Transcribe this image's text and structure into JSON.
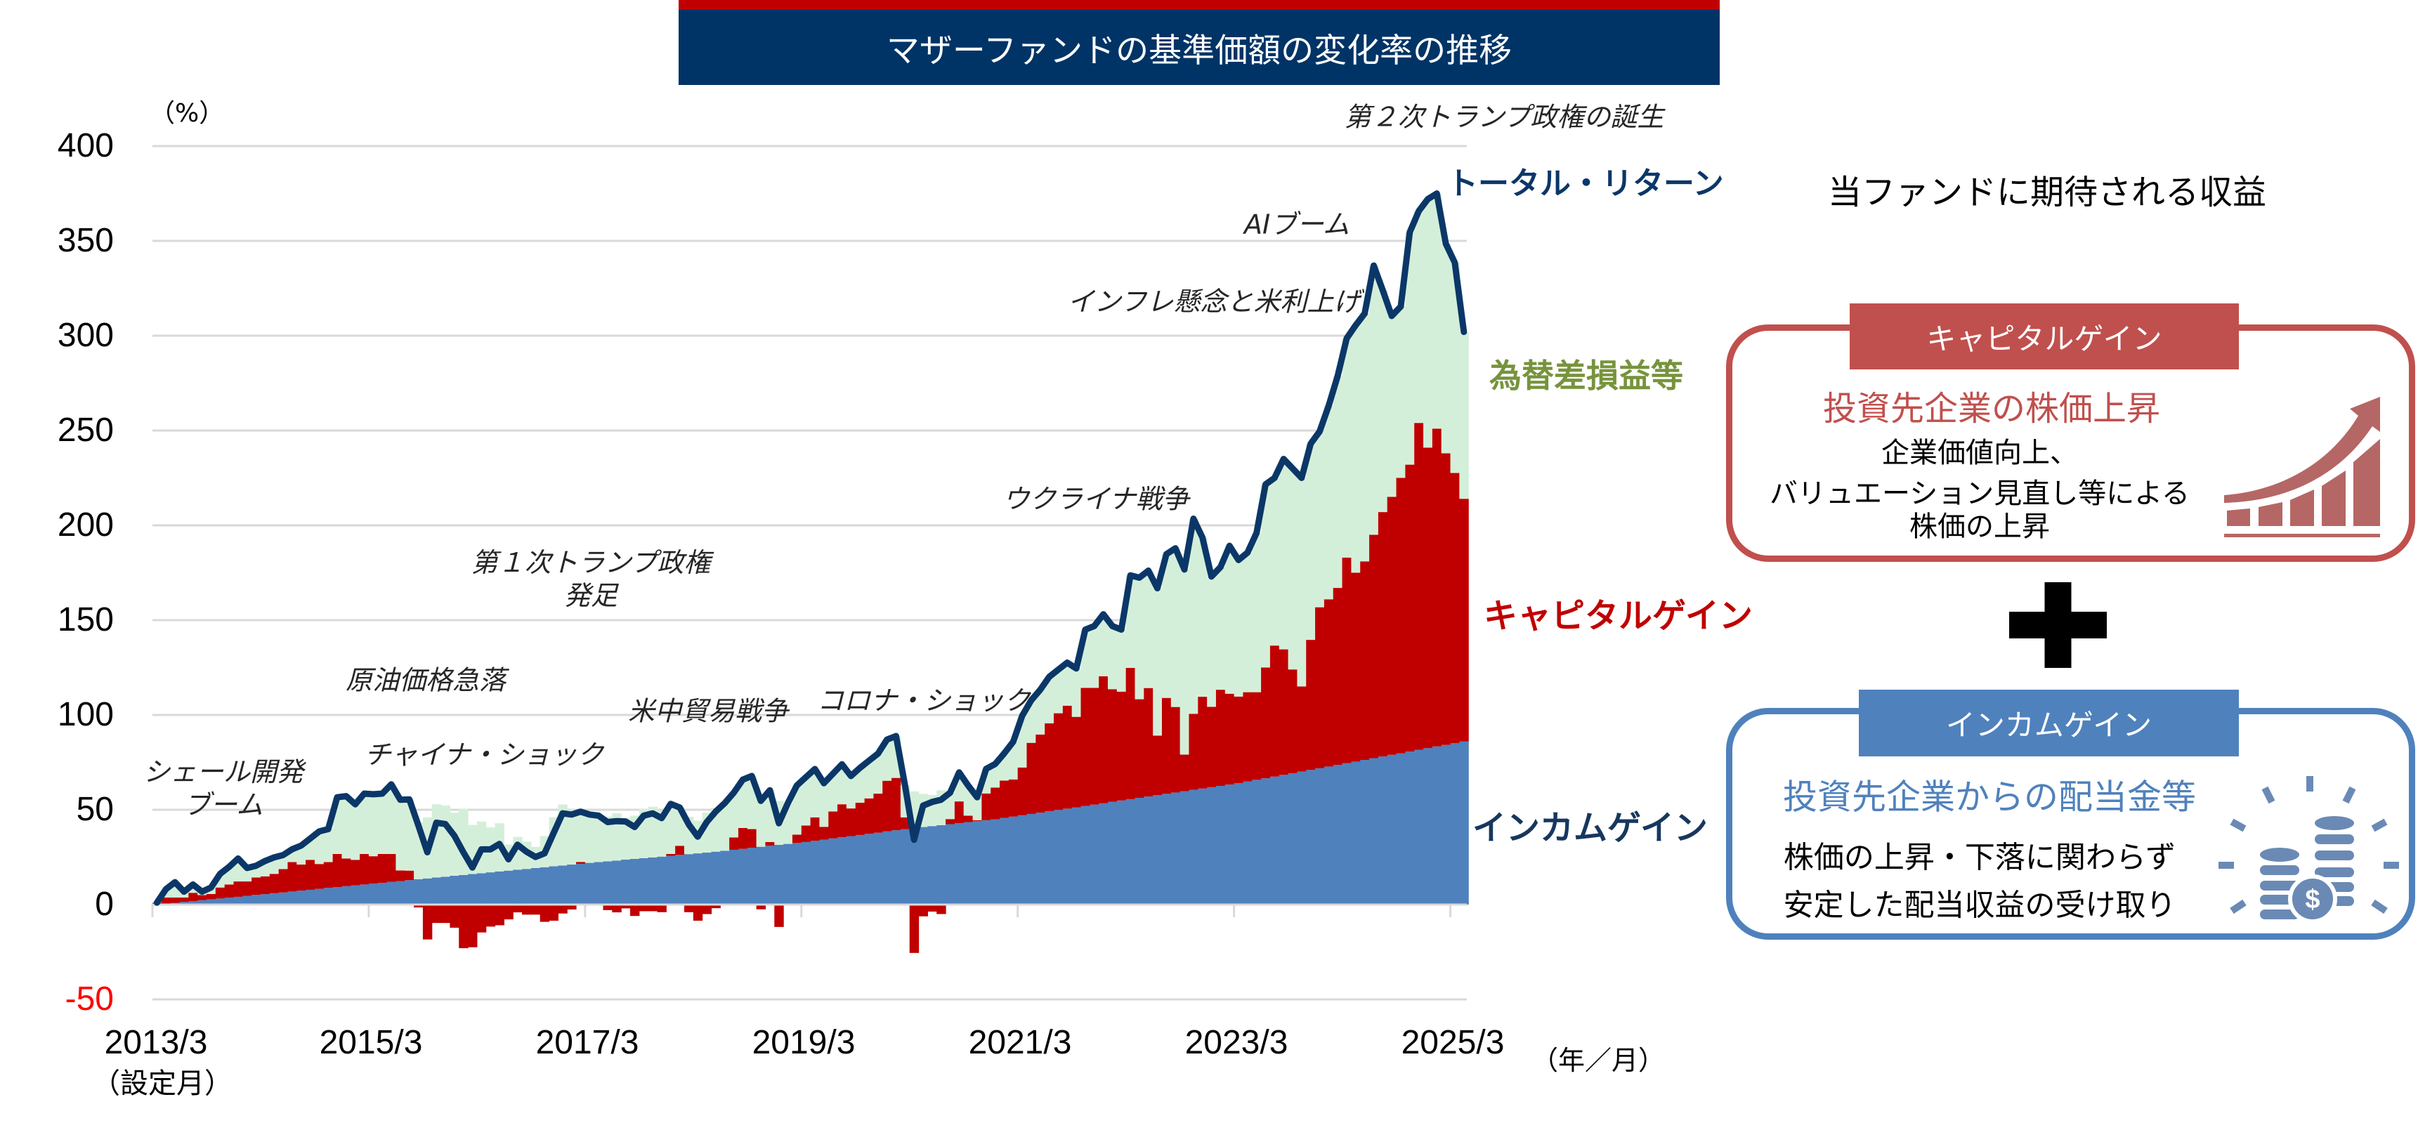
{
  "title_banner": {
    "title": "マザーファンドの基準価額の変化率の推移"
  },
  "chart": {
    "y_unit": "（%）",
    "x_unit": "（年／月）",
    "x_first_note": "（設定月）",
    "y_axis_labels": [
      "400",
      "350",
      "300",
      "250",
      "200",
      "150",
      "100",
      "50",
      "0",
      "-50"
    ],
    "x_axis_labels": [
      "2013/3",
      "2015/3",
      "2017/3",
      "2019/3",
      "2021/3",
      "2023/3",
      "2025/3"
    ],
    "annotations": [
      {
        "lines": [
          "シェール開発",
          "ブーム"
        ]
      },
      {
        "lines": [
          "チャイナ・ショック"
        ]
      },
      {
        "lines": [
          "原油価格急落"
        ]
      },
      {
        "lines": [
          "第１次トランプ政権",
          "発足"
        ]
      },
      {
        "lines": [
          "米中貿易戦争"
        ]
      },
      {
        "lines": [
          "コロナ・ショック"
        ]
      },
      {
        "lines": [
          "ウクライナ戦争"
        ]
      },
      {
        "lines": [
          "インフレ懸念と米利上げ"
        ]
      },
      {
        "lines": [
          "AIブーム"
        ]
      },
      {
        "lines": [
          "第２次トランプ政権の誕生"
        ]
      }
    ],
    "series_labels": {
      "total_return": "トータル・リターン",
      "fx": "為替差損益等",
      "capital_gain": "キャピタルゲイン",
      "income_gain": "インカムゲイン"
    }
  },
  "panel": {
    "title": "当ファンドに期待される収益",
    "capital_gain": {
      "header": "キャピタルゲイン",
      "subtitle": "投資先企業の株価上昇",
      "body": [
        "企業価値向上、",
        "バリュエーション見直し等による",
        "株価の上昇"
      ],
      "icon": "rising-bar-chart-arrow-icon",
      "color": "#c0504d"
    },
    "plus_icon": "plus-icon",
    "income_gain": {
      "header": "インカムゲイン",
      "subtitle": "投資先企業からの配当金等",
      "body": [
        "株価の上昇・下落に関わらず",
        "安定した配当収益の受け取り"
      ],
      "icon": "coin-stack-dollar-icon",
      "color": "#4f81bd"
    }
  },
  "colors": {
    "banner_navy": "#003466",
    "banner_red": "#c00000",
    "income_blue": "#4f81bd",
    "capital_red": "#c00000",
    "fx_green": "#d4efd9",
    "total_line_navy": "#0b3768",
    "fx_label_green": "#77933c",
    "negative_tick_red": "#ff0000",
    "gridline": "#d9d9d9",
    "panel_red": "#c0504d",
    "panel_blue": "#4f81bd"
  },
  "chart_data": {
    "type": "bar",
    "stacked": true,
    "combo_line": true,
    "title": "マザーファンドの基準価額の変化率の推移",
    "xlabel": "（年／月）",
    "ylabel": "（%）",
    "ylim": [
      -50,
      400
    ],
    "yticks": [
      400,
      350,
      300,
      250,
      200,
      150,
      100,
      50,
      0,
      -50
    ],
    "xtick_labels": [
      "2013/3",
      "2015/3",
      "2017/3",
      "2019/3",
      "2021/3",
      "2023/3",
      "2025/3"
    ],
    "first_tick_note": "（設定月）",
    "grid": true,
    "legend_position": "inline-right",
    "annotations": [
      "シェール開発ブーム",
      "チャイナ・ショック",
      "原油価格急落",
      "第１次トランプ政権発足",
      "米中貿易戦争",
      "コロナ・ショック",
      "ウクライナ戦争",
      "インフレ懸念と米利上げ",
      "AIブーム",
      "第２次トランプ政権の誕生"
    ],
    "x": [
      "2013/3",
      "2013/4",
      "2013/5",
      "2013/6",
      "2013/7",
      "2013/8",
      "2013/9",
      "2013/10",
      "2013/11",
      "2013/12",
      "2014/1",
      "2014/2",
      "2014/3",
      "2014/4",
      "2014/5",
      "2014/6",
      "2014/7",
      "2014/8",
      "2014/9",
      "2014/10",
      "2014/11",
      "2014/12",
      "2015/1",
      "2015/2",
      "2015/3",
      "2015/4",
      "2015/5",
      "2015/6",
      "2015/7",
      "2015/8",
      "2015/9",
      "2015/10",
      "2015/11",
      "2015/12",
      "2016/1",
      "2016/2",
      "2016/3",
      "2016/4",
      "2016/5",
      "2016/6",
      "2016/7",
      "2016/8",
      "2016/9",
      "2016/10",
      "2016/11",
      "2016/12",
      "2017/1",
      "2017/2",
      "2017/3",
      "2017/4",
      "2017/5",
      "2017/6",
      "2017/7",
      "2017/8",
      "2017/9",
      "2017/10",
      "2017/11",
      "2017/12",
      "2018/1",
      "2018/2",
      "2018/3",
      "2018/4",
      "2018/5",
      "2018/6",
      "2018/7",
      "2018/8",
      "2018/9",
      "2018/10",
      "2018/11",
      "2018/12",
      "2019/1",
      "2019/2",
      "2019/3",
      "2019/4",
      "2019/5",
      "2019/6",
      "2019/7",
      "2019/8",
      "2019/9",
      "2019/10",
      "2019/11",
      "2019/12",
      "2020/1",
      "2020/2",
      "2020/3",
      "2020/4",
      "2020/5",
      "2020/6",
      "2020/7",
      "2020/8",
      "2020/9",
      "2020/10",
      "2020/11",
      "2020/12",
      "2021/1",
      "2021/2",
      "2021/3",
      "2021/4",
      "2021/5",
      "2021/6",
      "2021/7",
      "2021/8",
      "2021/9",
      "2021/10",
      "2021/11",
      "2021/12",
      "2022/1",
      "2022/2",
      "2022/3",
      "2022/4",
      "2022/5",
      "2022/6",
      "2022/7",
      "2022/8",
      "2022/9",
      "2022/10",
      "2022/11",
      "2022/12",
      "2023/1",
      "2023/2",
      "2023/3",
      "2023/4",
      "2023/5",
      "2023/6",
      "2023/7",
      "2023/8",
      "2023/9",
      "2023/10",
      "2023/11",
      "2023/12",
      "2024/1",
      "2024/2",
      "2024/3",
      "2024/4",
      "2024/5",
      "2024/6",
      "2024/7",
      "2024/8",
      "2024/9",
      "2024/10",
      "2024/11",
      "2024/12",
      "2025/1",
      "2025/2",
      "2025/3",
      "2025/4"
    ],
    "series": [
      {
        "key": "income",
        "name": "インカムゲイン",
        "type": "bar",
        "color": "#4f81bd",
        "values": [
          0,
          0.5,
          0.9,
          1.4,
          1.8,
          2.3,
          2.8,
          3.2,
          3.7,
          4.1,
          4.6,
          5.1,
          5.5,
          6.0,
          6.4,
          6.9,
          7.4,
          7.8,
          8.3,
          8.8,
          9.2,
          9.7,
          10.1,
          10.6,
          11.1,
          11.5,
          12.0,
          12.4,
          12.9,
          13.4,
          13.8,
          14.3,
          14.7,
          15.2,
          15.6,
          16.1,
          16.5,
          17.0,
          17.5,
          17.9,
          18.4,
          18.8,
          19.3,
          19.7,
          20.2,
          20.6,
          21.1,
          21.5,
          22.0,
          22.4,
          22.8,
          23.2,
          23.7,
          24.1,
          24.5,
          24.9,
          25.3,
          25.7,
          26.2,
          26.6,
          27.0,
          27.4,
          27.9,
          28.4,
          28.9,
          29.4,
          29.9,
          30.5,
          31.0,
          31.5,
          32.0,
          32.5,
          33.0,
          33.6,
          34.2,
          34.9,
          35.5,
          36.1,
          36.7,
          37.3,
          37.9,
          38.6,
          39.2,
          39.8,
          40.4,
          40.9,
          41.4,
          41.9,
          42.4,
          42.9,
          43.5,
          44.0,
          44.5,
          45.0,
          45.7,
          46.4,
          47.1,
          47.8,
          48.5,
          49.2,
          49.9,
          50.6,
          51.3,
          52.0,
          52.7,
          53.4,
          54.2,
          54.9,
          55.6,
          56.3,
          57.0,
          57.7,
          58.4,
          59.1,
          59.8,
          60.5,
          61.2,
          61.9,
          62.6,
          63.3,
          64.0,
          64.9,
          65.8,
          66.6,
          67.5,
          68.4,
          69.3,
          70.2,
          71.0,
          71.9,
          72.8,
          73.7,
          74.6,
          75.4,
          76.3,
          77.2,
          78.1,
          79.0,
          79.8,
          80.7,
          81.6,
          82.5,
          83.4,
          84.2,
          85.1,
          86.0
        ]
      },
      {
        "key": "capital",
        "name": "キャピタルゲイン",
        "type": "bar",
        "color": "#c00000",
        "values": [
          1.0,
          3.2,
          2.8,
          2.3,
          4.4,
          2.7,
          2.8,
          5.8,
          6.9,
          8.1,
          7.6,
          9.2,
          9.4,
          10.2,
          12.3,
          15.5,
          13.7,
          15.8,
          13.1,
          13.6,
          17.5,
          14.6,
          13.5,
          16.1,
          14.4,
          15.2,
          14.7,
          5.6,
          5.0,
          -1.5,
          -18.4,
          -9.7,
          -9.7,
          -12.2,
          -23.0,
          -22.5,
          -14.7,
          -11.6,
          -10.9,
          -7.8,
          -4.1,
          -5.3,
          -5.3,
          -9.1,
          -8.5,
          -4.7,
          -2.6,
          1.0,
          0,
          0,
          -2.9,
          -4.1,
          -2.0,
          -6.0,
          -3.5,
          -3.5,
          -4.0,
          1.0,
          4.8,
          -4.0,
          -8.5,
          -5.0,
          -1.9,
          0,
          6.5,
          11.0,
          9.9,
          -2.5,
          2.0,
          -11.8,
          0,
          4.4,
          8.7,
          12.4,
          6.8,
          14.2,
          17.4,
          14.6,
          17.0,
          18.7,
          20.6,
          26.7,
          27.6,
          6.2,
          -25.5,
          -6.2,
          -3.7,
          -5.0,
          2.7,
          11.5,
          3.4,
          0.5,
          14.1,
          16.7,
          19.7,
          19.6,
          25.2,
          37.5,
          41.2,
          46.4,
          51.0,
          54.3,
          47.7,
          62.3,
          61.6,
          67.0,
          59.4,
          57.4,
          69.2,
          52.0,
          57.2,
          31.4,
          50.6,
          45.1,
          19.3,
          40.1,
          48.4,
          42.4,
          50.7,
          47.9,
          45.7,
          47.1,
          46.2,
          58.4,
          69.1,
          66.2,
          54.7,
          44.8,
          68.6,
          84.9,
          88.2,
          93.3,
          108.4,
          99.6,
          104.7,
          117.8,
          128.9,
          136.0,
          145.2,
          151.3,
          172.4,
          158.5,
          167.6,
          153.8,
          142.5,
          128.0
        ]
      },
      {
        "key": "fx",
        "name": "為替差損益等",
        "type": "bar",
        "color": "#d4efd9",
        "values": [
          0,
          4.4,
          8.1,
          3.1,
          4.4,
          1.8,
          3.4,
          7.2,
          9.3,
          12.1,
          7.1,
          6.2,
          8.1,
          8.7,
          7.4,
          6.8,
          10.0,
          11.2,
          17.2,
          17.4,
          29.9,
          32.9,
          29.3,
          31.8,
          32.7,
          31.8,
          36.7,
          37.3,
          37.6,
          29.9,
          32.2,
          38.6,
          37.5,
          33.3,
          35.0,
          25.9,
          27.3,
          23.7,
          25.4,
          13.8,
          17.3,
          14.4,
          11.1,
          16.4,
          25.9,
          32.2,
          29.0,
          26.5,
          25.5,
          24.5,
          23.6,
          24.9,
          22.1,
          22.8,
          25.9,
          26.7,
          24.3,
          26.4,
          20.2,
          19.7,
          17.3,
          21.1,
          23.1,
          25.1,
          23.6,
          25.5,
          28.0,
          26.7,
          27.3,
          23.2,
          21.5,
          25.9,
          25.5,
          25.5,
          23.0,
          19.9,
          21.1,
          17.1,
          18.4,
          19.9,
          21.1,
          21.7,
          22.1,
          16.8,
          19.3,
          17.5,
          16.4,
          18.4,
          13.9,
          15.3,
          15.9,
          12.1,
          13.0,
          12.4,
          14.3,
          19.9,
          27.3,
          22.4,
          23.6,
          24.5,
          23.0,
          22.7,
          25.5,
          30.7,
          32.6,
          32.7,
          33.3,
          32.7,
          48.8,
          64.1,
          61.9,
          77.7,
          75.8,
          83.7,
          97.6,
          102.9,
          83.9,
          68.7,
          64.7,
          78.0,
          72.0,
          73.6,
          84.0,
          96.6,
          88.4,
          100.4,
          106.0,
          110.0,
          103.4,
          92.7,
          102.0,
          111.7,
          115.6,
          130.5,
          130.7,
          142.0,
          117.0,
          95.4,
          90.4,
          122.6,
          111.7,
          131.0,
          124.0,
          110.5,
          110.9,
          88.0
        ]
      },
      {
        "key": "total",
        "name": "トータル・リターン",
        "type": "line",
        "color": "#0b3768",
        "values": [
          1.0,
          8.1,
          11.8,
          6.8,
          10.6,
          6.8,
          9.0,
          16.2,
          19.9,
          24.3,
          19.3,
          20.5,
          23.0,
          24.9,
          26.1,
          29.2,
          31.1,
          34.8,
          38.6,
          39.8,
          56.6,
          57.2,
          52.9,
          58.5,
          58.2,
          58.5,
          63.4,
          55.3,
          55.5,
          41.8,
          27.6,
          43.2,
          42.5,
          36.3,
          27.6,
          19.5,
          29.1,
          29.1,
          32.0,
          23.9,
          31.6,
          27.9,
          25.1,
          27.0,
          37.6,
          48.1,
          47.5,
          49.0,
          47.5,
          46.9,
          43.5,
          44.0,
          43.8,
          40.9,
          46.9,
          48.1,
          45.6,
          53.1,
          51.2,
          42.3,
          35.8,
          43.5,
          49.1,
          53.5,
          59.0,
          65.9,
          67.8,
          54.7,
          60.3,
          42.9,
          53.5,
          62.8,
          67.2,
          71.5,
          64.0,
          69.0,
          74.0,
          67.8,
          72.1,
          75.9,
          79.6,
          87.0,
          88.9,
          62.8,
          34.2,
          52.2,
          54.1,
          55.3,
          59.0,
          69.7,
          62.8,
          56.6,
          71.6,
          74.1,
          79.7,
          85.9,
          99.6,
          107.7,
          113.3,
          120.1,
          123.9,
          127.6,
          124.5,
          145.0,
          146.9,
          153.1,
          146.9,
          145.0,
          173.6,
          172.4,
          176.1,
          166.8,
          184.8,
          187.9,
          176.7,
          203.5,
          193.5,
          173.0,
          178.0,
          189.2,
          181.7,
          185.6,
          196.0,
          221.6,
          225.0,
          235.0,
          230.0,
          225.0,
          243.0,
          249.5,
          263.0,
          278.7,
          298.6,
          305.5,
          311.7,
          337.0,
          324.0,
          310.4,
          315.4,
          354.6,
          365.7,
          372.0,
          375.0,
          348.5,
          338.5,
          302.0
        ]
      }
    ]
  }
}
